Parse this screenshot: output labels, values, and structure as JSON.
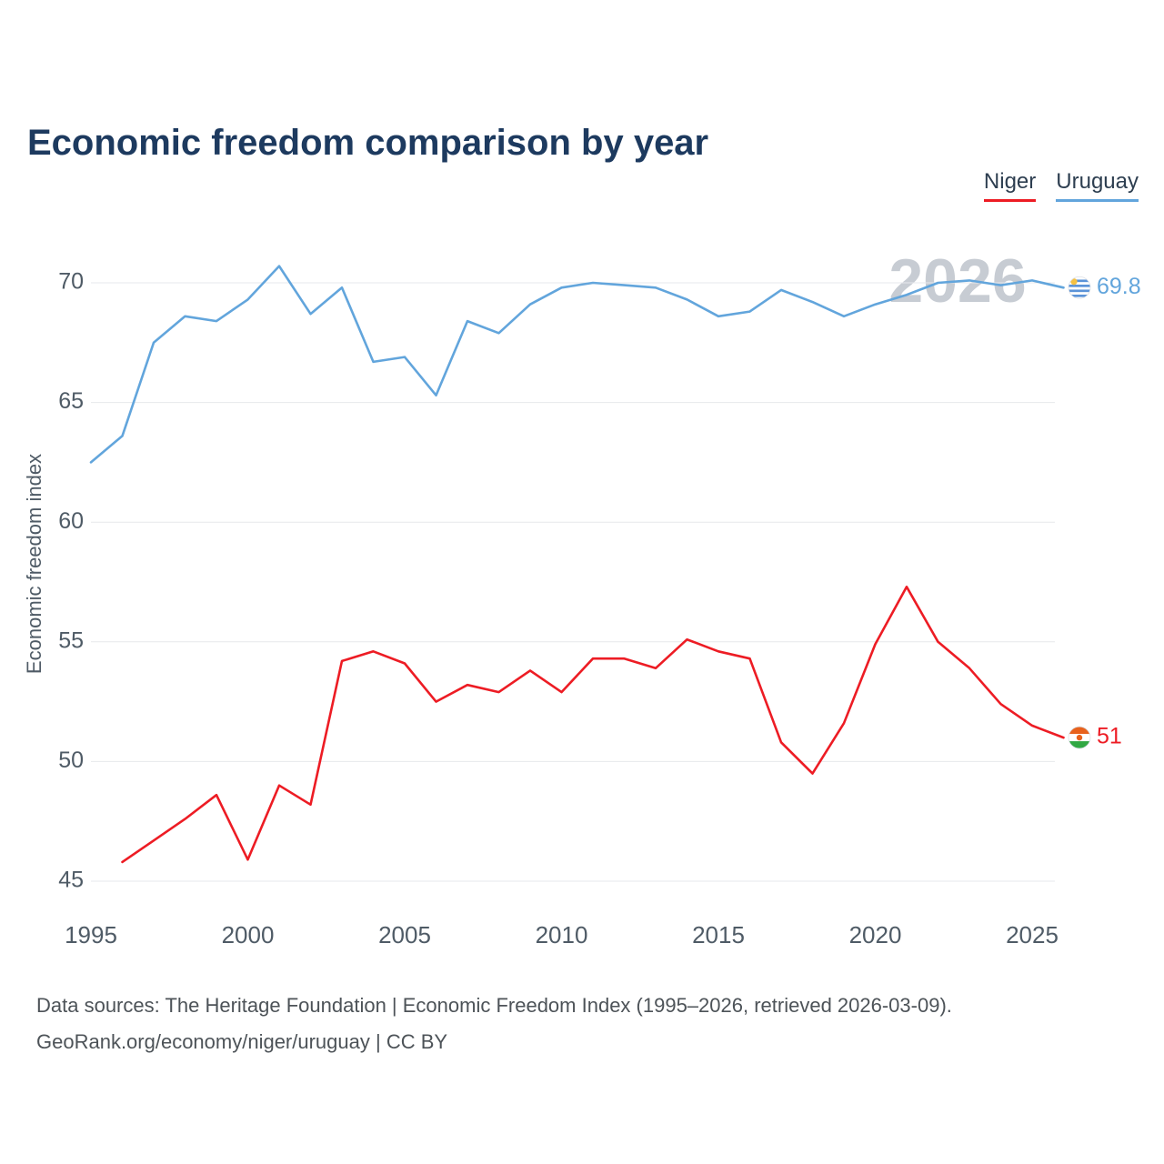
{
  "title": "Economic freedom comparison by year",
  "watermark": "2026",
  "legend": [
    {
      "label": "Niger",
      "color": "#ed1c24"
    },
    {
      "label": "Uruguay",
      "color": "#62a5dc"
    }
  ],
  "footer": {
    "line1": "Data sources: The Heritage Foundation | Economic Freedom Index (1995–2026, retrieved 2026-03-09).",
    "line2": "GeoRank.org/economy/niger/uruguay | CC BY"
  },
  "chart_data": {
    "type": "line",
    "title": "Economic freedom comparison by year",
    "xlabel": "",
    "ylabel": "Economic freedom index",
    "xlim": [
      1995,
      2026
    ],
    "ylim": [
      43.5,
      72
    ],
    "x_ticks": [
      1995,
      2000,
      2005,
      2010,
      2015,
      2020,
      2025
    ],
    "y_ticks": [
      45,
      50,
      55,
      60,
      65,
      70
    ],
    "grid": "horizontal",
    "legend_position": "top-right",
    "series": [
      {
        "name": "Niger",
        "color": "#ed1c24",
        "flag": "niger",
        "end_label": "51",
        "x": [
          1996,
          1997,
          1998,
          1999,
          2000,
          2001,
          2002,
          2003,
          2004,
          2005,
          2006,
          2007,
          2008,
          2009,
          2010,
          2011,
          2012,
          2013,
          2014,
          2015,
          2016,
          2017,
          2018,
          2019,
          2020,
          2021,
          2022,
          2023,
          2024,
          2025,
          2026
        ],
        "values": [
          45.8,
          46.7,
          47.6,
          48.6,
          45.9,
          49.0,
          48.2,
          54.2,
          54.6,
          54.1,
          52.5,
          53.2,
          52.9,
          53.8,
          52.9,
          54.3,
          54.3,
          53.9,
          55.1,
          54.6,
          54.3,
          50.8,
          49.5,
          51.6,
          54.9,
          57.3,
          55.0,
          53.9,
          52.4,
          51.5,
          51.0
        ]
      },
      {
        "name": "Uruguay",
        "color": "#62a5dc",
        "flag": "uruguay",
        "end_label": "69.8",
        "x": [
          1995,
          1996,
          1997,
          1998,
          1999,
          2000,
          2001,
          2002,
          2003,
          2004,
          2005,
          2006,
          2007,
          2008,
          2009,
          2010,
          2011,
          2012,
          2013,
          2014,
          2015,
          2016,
          2017,
          2018,
          2019,
          2020,
          2021,
          2022,
          2023,
          2024,
          2025,
          2026
        ],
        "values": [
          62.5,
          63.6,
          67.5,
          68.6,
          68.4,
          69.3,
          70.7,
          68.7,
          69.8,
          66.7,
          66.9,
          65.3,
          68.4,
          67.9,
          69.1,
          69.8,
          70.0,
          69.9,
          69.8,
          69.3,
          68.6,
          68.8,
          69.7,
          69.2,
          68.6,
          69.1,
          69.5,
          70.0,
          70.1,
          69.9,
          70.1,
          69.8
        ]
      }
    ]
  }
}
